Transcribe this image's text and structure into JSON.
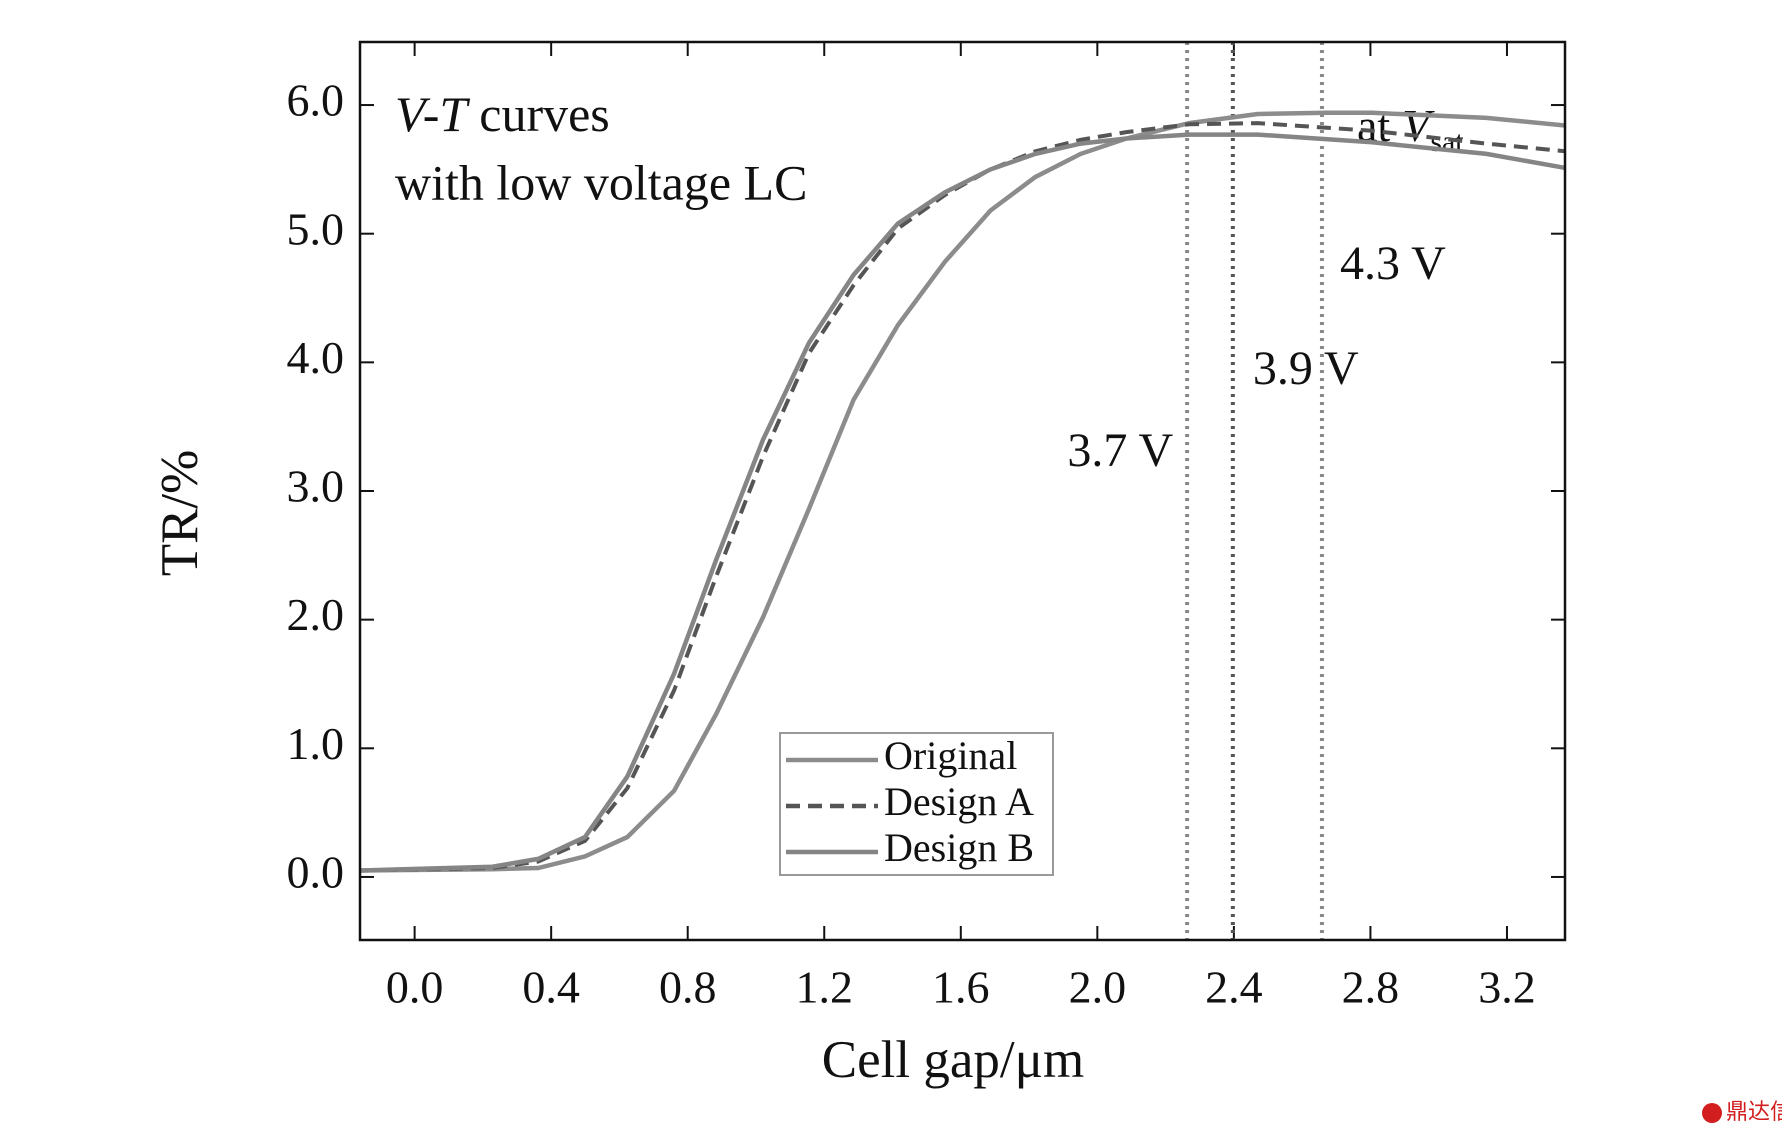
{
  "chart_data": {
    "type": "line",
    "xlabel": "Cell gap/μm",
    "ylabel": "TR/%",
    "xlim": [
      -0.16,
      3.37
    ],
    "ylim": [
      -0.49,
      6.49
    ],
    "xticks": [
      {
        "value": 0,
        "label": "0.0"
      },
      0.4,
      0.8,
      1.2,
      1.6,
      {
        "value": 2,
        "label": "2.0"
      },
      2.4,
      2.8,
      3.2
    ],
    "yticks": [
      {
        "value": 0,
        "label": "0.0"
      },
      {
        "value": 1,
        "label": "1.0"
      },
      {
        "value": 2,
        "label": "2.0"
      },
      {
        "value": 3,
        "label": "3.0"
      },
      {
        "value": 4,
        "label": "4.0"
      },
      {
        "value": 5,
        "label": "5.0"
      },
      {
        "value": 6,
        "label": "6.0"
      }
    ],
    "annotation": {
      "italic": "V-T",
      "text": "curves",
      "line2": "with low voltage LC"
    },
    "sat_label": {
      "text": "at",
      "italic": "V",
      "sub": "sat"
    },
    "vlines": [
      {
        "x": 2.263,
        "label": "3.7 V"
      },
      {
        "x": 2.397,
        "label": "3.9 V"
      },
      {
        "x": 2.658,
        "label": "4.3 V"
      }
    ],
    "legend": "lower center",
    "series": [
      {
        "name": "Original",
        "color": "#8c8c8c",
        "dash": false,
        "x": [
          -0.157,
          0.228,
          0.362,
          0.499,
          0.623,
          0.76,
          0.884,
          1.021,
          1.155,
          1.286,
          1.416,
          1.553,
          1.687,
          1.818,
          1.951,
          2.085,
          2.269,
          2.47,
          2.671,
          2.805,
          3.14,
          3.374
        ],
        "values": [
          0.05,
          0.06,
          0.07,
          0.16,
          0.31,
          0.67,
          1.27,
          2.02,
          2.86,
          3.71,
          4.29,
          4.78,
          5.18,
          5.44,
          5.62,
          5.74,
          5.86,
          5.93,
          5.94,
          5.94,
          5.9,
          5.84
        ]
      },
      {
        "name": "Design A",
        "color": "#555555",
        "dash": true,
        "x": [
          -0.157,
          0.228,
          0.362,
          0.499,
          0.623,
          0.76,
          0.884,
          1.021,
          1.155,
          1.286,
          1.416,
          1.553,
          1.687,
          1.818,
          1.951,
          2.085,
          2.269,
          2.47,
          2.805,
          3.14,
          3.374
        ],
        "values": [
          0.05,
          0.07,
          0.12,
          0.28,
          0.69,
          1.45,
          2.34,
          3.27,
          4.07,
          4.6,
          5.04,
          5.3,
          5.5,
          5.64,
          5.73,
          5.79,
          5.85,
          5.86,
          5.8,
          5.7,
          5.64
        ]
      },
      {
        "name": "Design B",
        "color": "#858585",
        "dash": false,
        "x": [
          -0.157,
          0.228,
          0.362,
          0.499,
          0.623,
          0.76,
          0.884,
          1.021,
          1.155,
          1.286,
          1.416,
          1.553,
          1.687,
          1.818,
          1.951,
          2.085,
          2.269,
          2.47,
          2.805,
          3.14,
          3.374
        ],
        "values": [
          0.05,
          0.08,
          0.14,
          0.31,
          0.78,
          1.58,
          2.47,
          3.4,
          4.15,
          4.68,
          5.08,
          5.32,
          5.5,
          5.62,
          5.7,
          5.74,
          5.77,
          5.77,
          5.71,
          5.62,
          5.51
        ]
      }
    ],
    "watermark": "鼎达信"
  }
}
